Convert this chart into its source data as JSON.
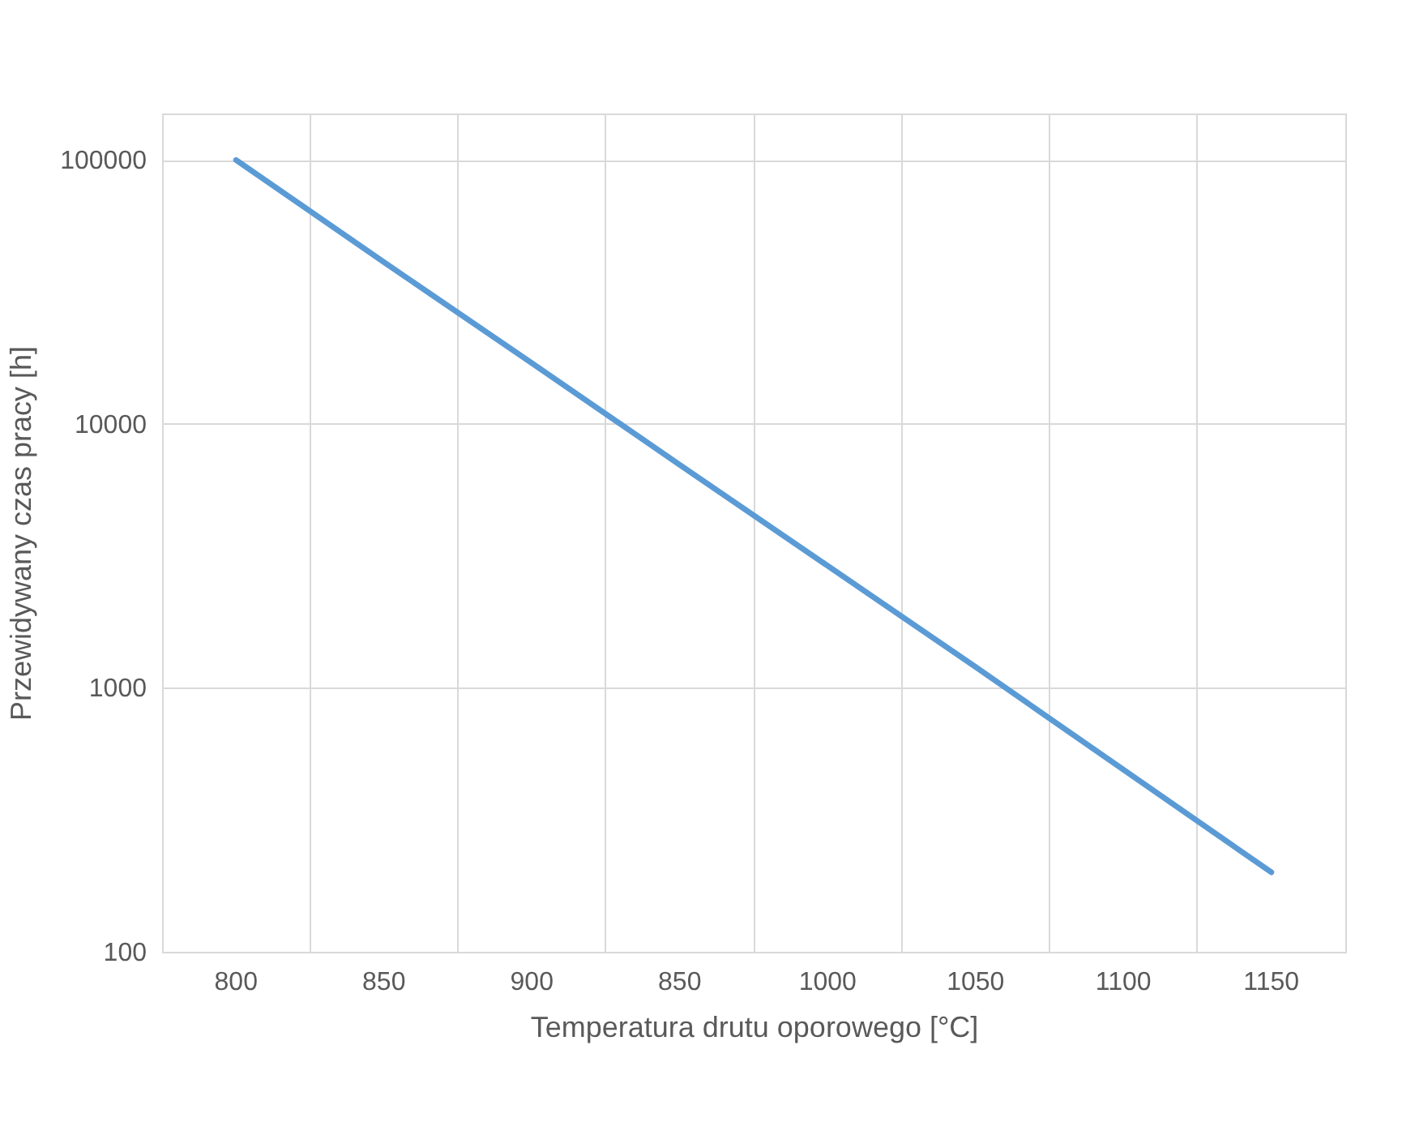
{
  "chart_data": {
    "type": "line",
    "xlabel": "Temperatura drutu oporowego [°C]",
    "ylabel": "Przewidywany czas pracy [h]",
    "categories": [
      "800",
      "850",
      "900",
      "850",
      "1000",
      "1050",
      "1100",
      "1150"
    ],
    "series": [
      {
        "color": "#5b9bd5",
        "values": [
          100000,
          41000,
          17000,
          7000,
          2900,
          1200,
          490,
          200
        ]
      }
    ],
    "log": "y",
    "ylim": [
      100,
      150000
    ],
    "yticks": [
      100,
      1000,
      10000,
      100000
    ],
    "grid": true,
    "legend": false,
    "marker": "none",
    "line_style": "solid"
  }
}
